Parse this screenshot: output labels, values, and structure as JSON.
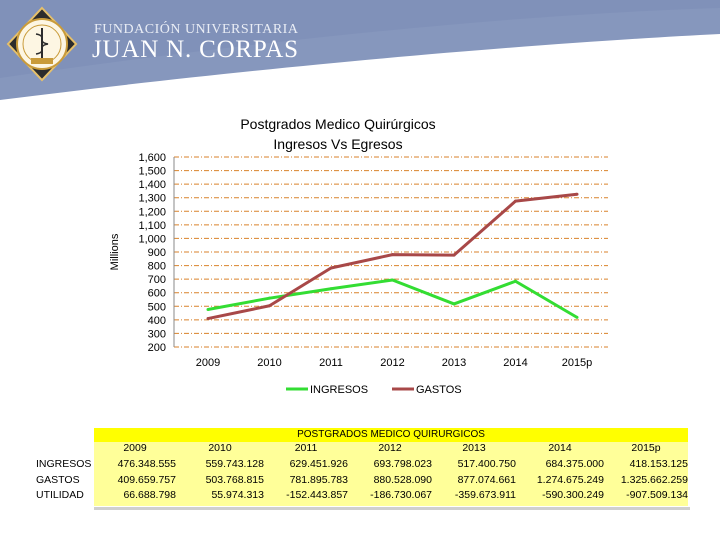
{
  "header": {
    "brand_top": "FUNDACIÓN UNIVERSITARIA",
    "brand_main": "JUAN N. CORPAS",
    "colors": {
      "band": "#8496bd",
      "band_dark": "#6f82ad"
    }
  },
  "chart_data": {
    "type": "line",
    "title": "Postgrados Medico Quirúrgicos",
    "subtitle": "Ingresos Vs Egresos",
    "ylabel": "Millions",
    "xlabel": "",
    "categories": [
      "2009",
      "2010",
      "2011",
      "2012",
      "2013",
      "2014",
      "2015p"
    ],
    "ylim": [
      200,
      1600
    ],
    "yticks": [
      "200",
      "300",
      "400",
      "500",
      "600",
      "700",
      "800",
      "900",
      "1,000",
      "1,100",
      "1,200",
      "1,300",
      "1,400",
      "1,500",
      "1,600"
    ],
    "grid": true,
    "legend_position": "bottom",
    "series": [
      {
        "name": "INGRESOS",
        "color": "#33dd33",
        "values": [
          476.35,
          559.74,
          629.45,
          693.8,
          517.4,
          684.38,
          418.15
        ]
      },
      {
        "name": "GASTOS",
        "color": "#a84848",
        "values": [
          409.66,
          503.77,
          781.9,
          880.53,
          877.07,
          1274.68,
          1325.66
        ]
      }
    ]
  },
  "table": {
    "title": "POSTGRADOS MEDICO QUIRURGICOS",
    "years": [
      "2009",
      "2010",
      "2011",
      "2012",
      "2013",
      "2014",
      "2015p"
    ],
    "rows": [
      {
        "label": "INGRESOS",
        "values": [
          "476.348.555",
          "559.743.128",
          "629.451.926",
          "693.798.023",
          "517.400.750",
          "684.375.000",
          "418.153.125"
        ]
      },
      {
        "label": "GASTOS",
        "values": [
          "409.659.757",
          "503.768.815",
          "781.895.783",
          "880.528.090",
          "877.074.661",
          "1.274.675.249",
          "1.325.662.259"
        ]
      },
      {
        "label": "UTILIDAD",
        "values": [
          "66.688.798",
          "55.974.313",
          "-152.443.857",
          "-186.730.067",
          "-359.673.911",
          "-590.300.249",
          "-907.509.134"
        ]
      }
    ]
  }
}
